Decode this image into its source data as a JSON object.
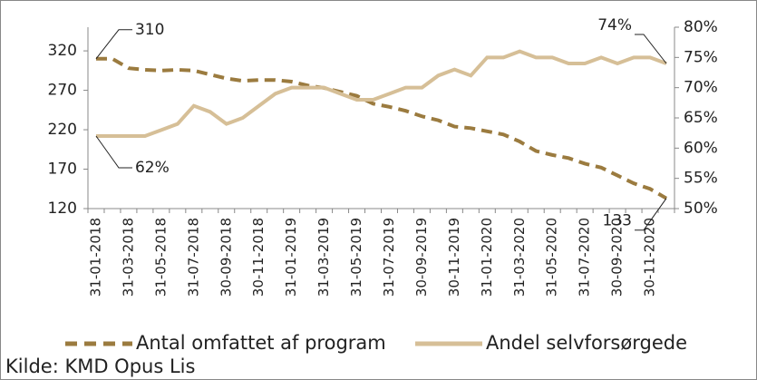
{
  "chart_data": {
    "type": "line",
    "categories": [
      "31-01-2018",
      null,
      "31-03-2018",
      null,
      "31-05-2018",
      null,
      "31-07-2018",
      null,
      "30-09-2018",
      null,
      "30-11-2018",
      null,
      "31-01-2019",
      null,
      "31-03-2019",
      null,
      "31-05-2019",
      null,
      "31-07-2019",
      null,
      "30-09-2019",
      null,
      "30-11-2019",
      null,
      "31-01-2020",
      null,
      "31-03-2020",
      null,
      "31-05-2020",
      null,
      "31-07-2020",
      null,
      "30-09-2020",
      null,
      "30-11-2020",
      null
    ],
    "series": [
      {
        "name": "Antal omfattet af program",
        "color": "#9b7b3f",
        "dash": true,
        "values": [
          310,
          310,
          298,
          296,
          295,
          296,
          295,
          290,
          285,
          282,
          283,
          283,
          281,
          276,
          273,
          268,
          263,
          253,
          249,
          244,
          237,
          232,
          224,
          222,
          218,
          214,
          205,
          193,
          188,
          184,
          177,
          172,
          162,
          152,
          145,
          133
        ],
        "value_labels": [
          "310",
          null,
          null,
          null,
          null,
          null,
          null,
          null,
          null,
          null,
          null,
          null,
          null,
          null,
          null,
          null,
          null,
          null,
          null,
          null,
          null,
          null,
          null,
          null,
          null,
          null,
          null,
          null,
          null,
          null,
          null,
          null,
          null,
          null,
          null,
          "133"
        ]
      },
      {
        "name": "Andel selvforsørgede",
        "color": "#d6bf97",
        "dash": false,
        "axis": "y2",
        "values": [
          62,
          62,
          62,
          62,
          63,
          64,
          67,
          66,
          64,
          65,
          67,
          69,
          70,
          70,
          70,
          69,
          68,
          68,
          69,
          70,
          70,
          72,
          73,
          72,
          75,
          75,
          76,
          75,
          75,
          74,
          74,
          75,
          74,
          75,
          75,
          74
        ],
        "value_labels": [
          "62%",
          null,
          null,
          null,
          null,
          null,
          null,
          null,
          null,
          null,
          null,
          null,
          null,
          null,
          null,
          null,
          null,
          null,
          null,
          null,
          null,
          null,
          null,
          null,
          null,
          null,
          null,
          null,
          null,
          null,
          null,
          null,
          null,
          null,
          null,
          "74%"
        ]
      }
    ],
    "ylim": [
      120,
      350
    ],
    "yticks": [
      120,
      170,
      220,
      270,
      320
    ],
    "y2lim": [
      50,
      80
    ],
    "y2ticks": [
      {
        "value": 50,
        "label": "50%"
      },
      {
        "value": 55,
        "label": "55%"
      },
      {
        "value": 60,
        "label": "60%"
      },
      {
        "value": 65,
        "label": "65%"
      },
      {
        "value": 70,
        "label": "70%"
      },
      {
        "value": 75,
        "label": "75%"
      },
      {
        "value": 80,
        "label": "80%"
      }
    ],
    "source": "Kilde: KMD Opus Lis"
  }
}
